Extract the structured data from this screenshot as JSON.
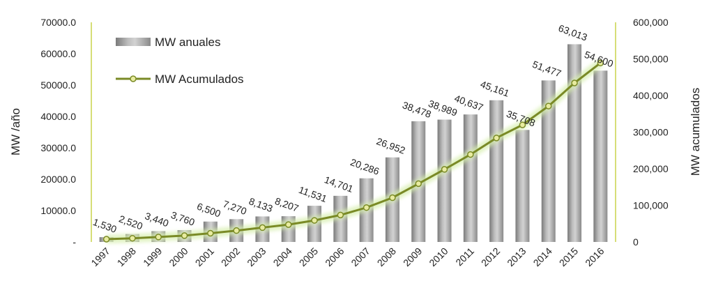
{
  "chart_data": {
    "type": "bar",
    "categories": [
      "1997",
      "1998",
      "1999",
      "2000",
      "2001",
      "2002",
      "2003",
      "2004",
      "2005",
      "2006",
      "2007",
      "2008",
      "2009",
      "2010",
      "2011",
      "2012",
      "2013",
      "2014",
      "2015",
      "2016"
    ],
    "series": [
      {
        "name": "MW anuales",
        "type": "bar",
        "axis": "left",
        "color": "#9a9a9a",
        "values": [
          1530,
          2520,
          3440,
          3760,
          6500,
          7270,
          8133,
          8207,
          11531,
          14701,
          20286,
          26952,
          38478,
          38989,
          40637,
          45161,
          35708,
          51477,
          63013,
          54600
        ],
        "labels": [
          "1,530",
          "2,520",
          "3,440",
          "3,760",
          "6,500",
          "7,270",
          "8,133",
          "8,207",
          "11,531",
          "14,701",
          "20,286",
          "26,952",
          "38,478",
          "38,989",
          "40,637",
          "45,161",
          "35,708",
          "51,477",
          "63,013",
          "54,600"
        ]
      },
      {
        "name": "MW Acumulados",
        "type": "line",
        "axis": "right",
        "color": "#7a8a26",
        "marker_fill": "#e8eca0",
        "values": [
          7600,
          10100,
          13500,
          17300,
          23800,
          31100,
          39200,
          47400,
          58900,
          73600,
          93900,
          120900,
          159300,
          198300,
          238900,
          284100,
          319800,
          371300,
          434300,
          488900
        ]
      }
    ],
    "y_left": {
      "label": "MW /año",
      "min": 0,
      "max": 70000,
      "ticks": [
        0,
        10000,
        20000,
        30000,
        40000,
        50000,
        60000,
        70000
      ],
      "tick_labels": [
        "-",
        "10000.0",
        "20000.0",
        "30000.0",
        "40000.0",
        "50000.0",
        "60000.0",
        "70000.0"
      ]
    },
    "y_right": {
      "label": "MW acumulados",
      "min": 0,
      "max": 600000,
      "ticks": [
        0,
        100000,
        200000,
        300000,
        400000,
        500000,
        600000
      ],
      "tick_labels": [
        "0",
        "100,000",
        "200,000",
        "300,000",
        "400,000",
        "500,000",
        "600,000"
      ]
    },
    "grid": false,
    "legend_position": "top-left"
  }
}
